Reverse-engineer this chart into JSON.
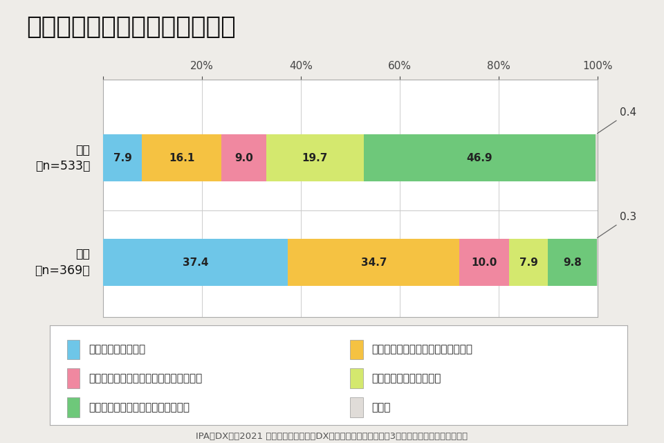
{
  "title": "社員の学びの方針（学び直し）",
  "categories": [
    "日本\n（n=533）",
    "米国\n（n=369）"
  ],
  "series": [
    {
      "label": "全社員対象での実施",
      "color": "#6ec6e8",
      "values": [
        7.9,
        37.4
      ]
    },
    {
      "label": "会社選抜による特定社員向けの実施",
      "color": "#f5c242",
      "values": [
        16.1,
        34.7
      ]
    },
    {
      "label": "社員の立候補による特定社員向けの実施",
      "color": "#f088a0",
      "values": [
        9.0,
        10.0
      ]
    },
    {
      "label": "実施していないか検討中",
      "color": "#d4e86e",
      "values": [
        19.7,
        7.9
      ]
    },
    {
      "label": "実施していないし検討もしていない",
      "color": "#6ec87a",
      "values": [
        46.9,
        9.8
      ]
    },
    {
      "label": "その他",
      "color": "#e0dcd8",
      "values": [
        0.4,
        0.3
      ]
    }
  ],
  "xlabel_ticks": [
    0,
    20,
    40,
    60,
    80,
    100
  ],
  "background_color": "#eeece8",
  "plot_background": "#ffffff",
  "source_text": "IPA「DX白書2021 日米比較調査にみるDXの戦略、人材、技術　第3部デジタル時代の人材」より",
  "title_fontsize": 26,
  "bar_height": 0.45,
  "annotation_fontsize": 11,
  "legend_fontsize": 11
}
